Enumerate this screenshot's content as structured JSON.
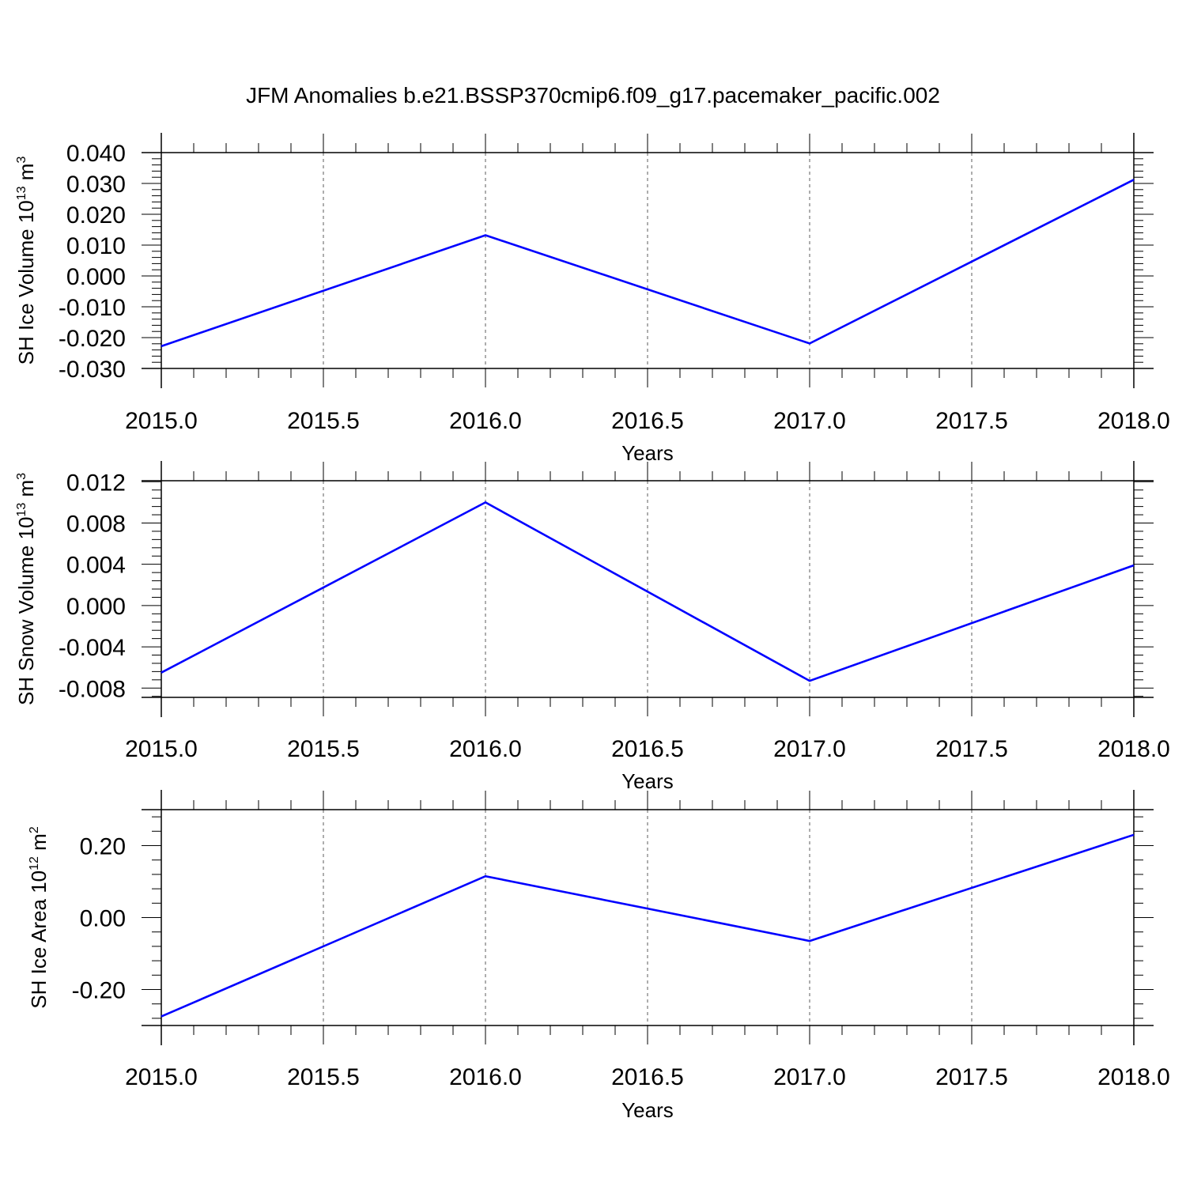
{
  "title": "JFM Anomalies b.e21.BSSP370cmip6.f09_g17.pacemaker_pacific.002",
  "colors": {
    "series": "#0000ff",
    "axis": "#000000",
    "grid": "#777777"
  },
  "chart_data": [
    {
      "type": "line",
      "ylabel": "SH Ice Volume 10",
      "ylabel_sup": "13",
      "ylabel_unit": "m",
      "ylabel_unit_sup": "3",
      "xlabel": "Years",
      "x": [
        2015.0,
        2016.0,
        2017.0,
        2018.0
      ],
      "series": [
        {
          "values": [
            -0.0228,
            0.0132,
            -0.0219,
            0.0312
          ]
        }
      ],
      "xlim": [
        2015.0,
        2018.0
      ],
      "ylim": [
        -0.03,
        0.04
      ],
      "xticks": [
        2015.0,
        2015.5,
        2016.0,
        2016.5,
        2017.0,
        2017.5,
        2018.0
      ],
      "xtick_labels": [
        "2015.0",
        "2015.5",
        "2016.0",
        "2016.5",
        "2017.0",
        "2017.5",
        "2018.0"
      ],
      "yticks": [
        -0.03,
        -0.02,
        -0.01,
        0.0,
        0.01,
        0.02,
        0.03,
        0.04
      ],
      "ytick_labels": [
        "-0.030",
        "-0.020",
        "-0.010",
        "0.000",
        "0.010",
        "0.020",
        "0.030",
        "0.040"
      ],
      "grid": "x-dashed"
    },
    {
      "type": "line",
      "ylabel": "SH Snow Volume 10",
      "ylabel_sup": "13",
      "ylabel_unit": "m",
      "ylabel_unit_sup": "3",
      "xlabel": "Years",
      "x": [
        2015.0,
        2016.0,
        2017.0,
        2018.0
      ],
      "series": [
        {
          "values": [
            -0.0065,
            0.01,
            -0.0073,
            0.0039
          ]
        }
      ],
      "xlim": [
        2015.0,
        2018.0
      ],
      "ylim": [
        -0.0089,
        0.0121
      ],
      "xticks": [
        2015.0,
        2015.5,
        2016.0,
        2016.5,
        2017.0,
        2017.5,
        2018.0
      ],
      "xtick_labels": [
        "2015.0",
        "2015.5",
        "2016.0",
        "2016.5",
        "2017.0",
        "2017.5",
        "2018.0"
      ],
      "yticks": [
        -0.008,
        -0.004,
        0.0,
        0.004,
        0.008,
        0.012
      ],
      "ytick_labels": [
        "-0.008",
        "-0.004",
        "0.000",
        "0.004",
        "0.008",
        "0.012"
      ],
      "grid": "x-dashed"
    },
    {
      "type": "line",
      "ylabel": "SH Ice Area 10",
      "ylabel_sup": "12",
      "ylabel_unit": "m",
      "ylabel_unit_sup": "2",
      "xlabel": "Years",
      "x": [
        2015.0,
        2016.0,
        2017.0,
        2018.0
      ],
      "series": [
        {
          "values": [
            -0.275,
            0.115,
            -0.065,
            0.23
          ]
        }
      ],
      "xlim": [
        2015.0,
        2018.0
      ],
      "ylim": [
        -0.3,
        0.3
      ],
      "xticks": [
        2015.0,
        2015.5,
        2016.0,
        2016.5,
        2017.0,
        2017.5,
        2018.0
      ],
      "xtick_labels": [
        "2015.0",
        "2015.5",
        "2016.0",
        "2016.5",
        "2017.0",
        "2017.5",
        "2018.0"
      ],
      "yticks": [
        -0.2,
        0.0,
        0.2
      ],
      "ytick_labels": [
        "-0.20",
        "0.00",
        "0.20"
      ],
      "grid": "x-dashed"
    }
  ]
}
